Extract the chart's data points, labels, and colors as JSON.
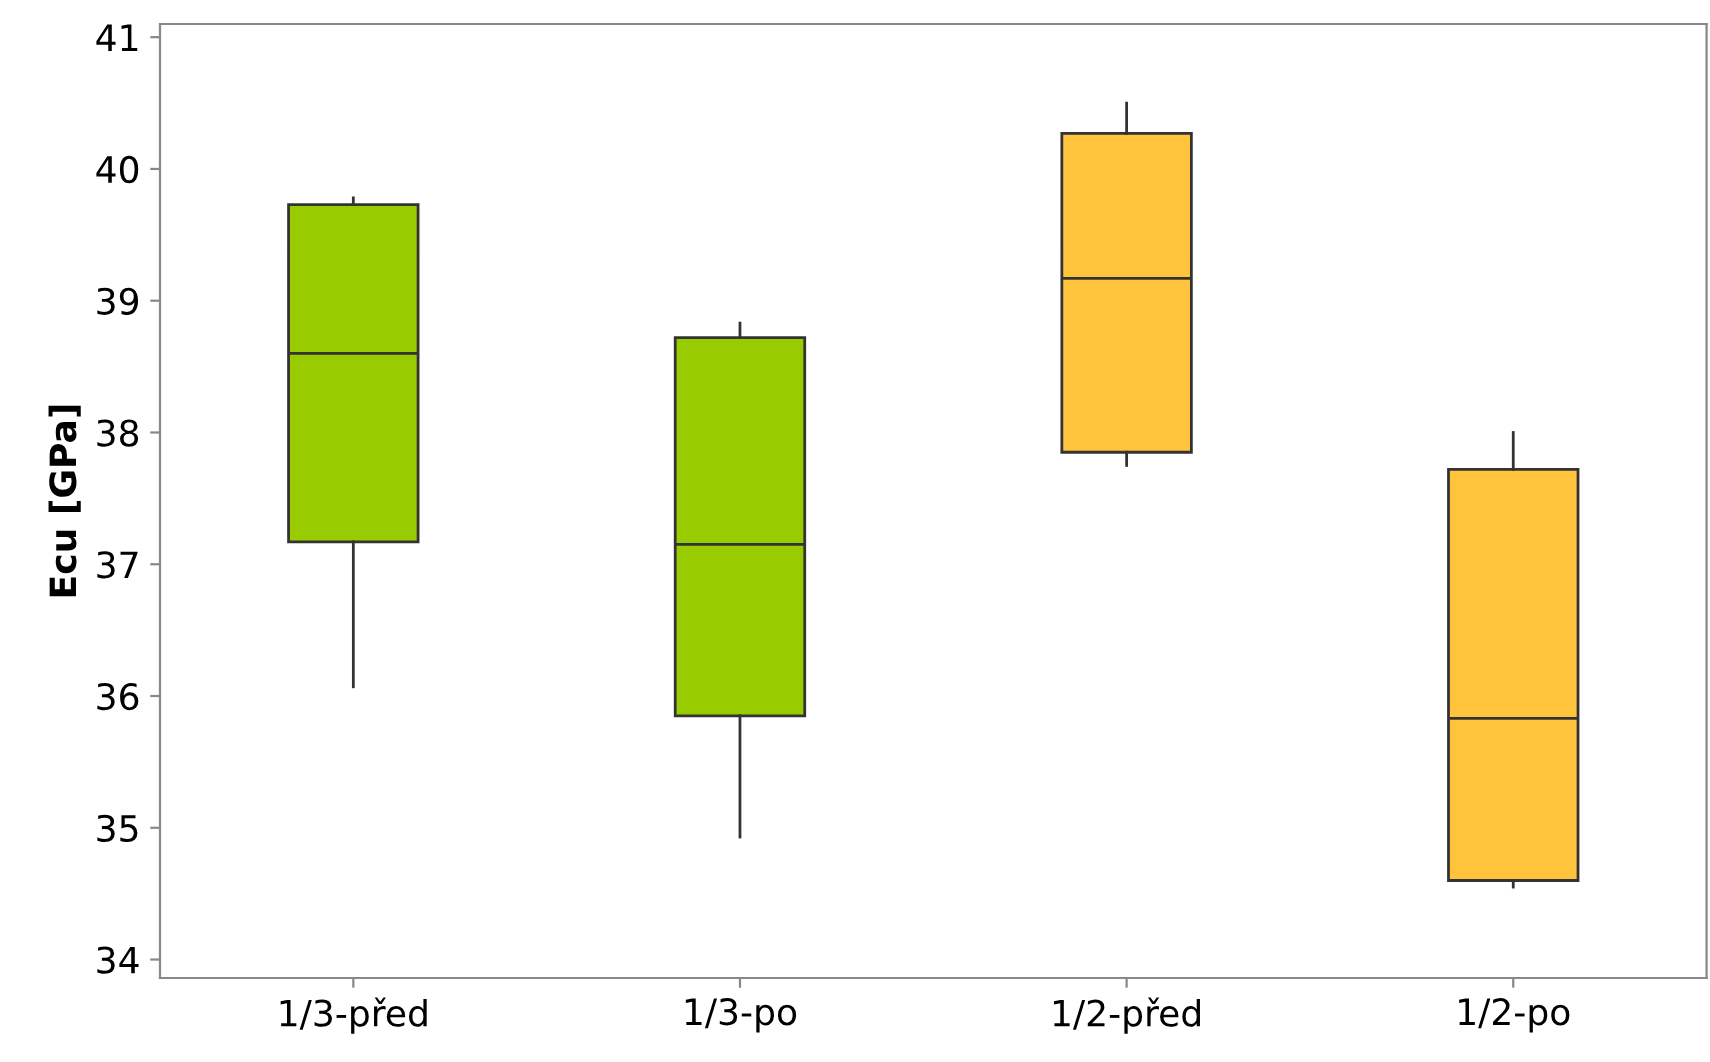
{
  "chart_data": {
    "type": "box",
    "ylabel": "Ecu [GPa]",
    "categories": [
      "1/3-před",
      "1/3-po",
      "1/2-před",
      "1/2-po"
    ],
    "colors": [
      "#99cc00",
      "#99cc00",
      "#ffc33c",
      "#ffc33c"
    ],
    "boxes": [
      {
        "low": 36.07,
        "q1": 37.17,
        "median": 38.6,
        "q3": 39.73,
        "high": 39.78
      },
      {
        "low": 34.93,
        "q1": 35.85,
        "median": 37.15,
        "q3": 38.72,
        "high": 38.83
      },
      {
        "low": 37.75,
        "q1": 37.85,
        "median": 39.17,
        "q3": 40.27,
        "high": 40.5
      },
      {
        "low": 34.55,
        "q1": 34.6,
        "median": 35.83,
        "q3": 37.72,
        "high": 38.0
      }
    ],
    "ylim": [
      33.86,
      41.1
    ],
    "yticks": [
      34,
      35,
      36,
      37,
      38,
      39,
      40,
      41
    ],
    "grid": false
  }
}
